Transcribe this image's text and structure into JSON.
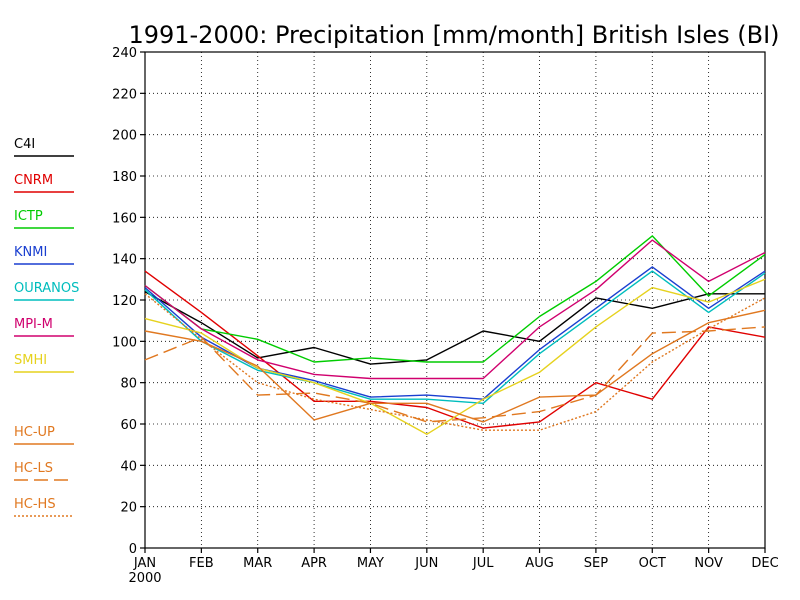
{
  "chart_data": {
    "type": "line",
    "title": "1991-2000: Precipitation [mm/month] British Isles (BI)",
    "categories": [
      "JAN",
      "FEB",
      "MAR",
      "APR",
      "MAY",
      "JUN",
      "JUL",
      "AUG",
      "SEP",
      "OCT",
      "NOV",
      "DEC"
    ],
    "x_sublabel": "2000",
    "ylim": [
      0,
      240
    ],
    "yticks": [
      0,
      20,
      40,
      60,
      80,
      100,
      120,
      140,
      160,
      180,
      200,
      220,
      240
    ],
    "grid": true,
    "legend_position": "left",
    "series": [
      {
        "name": "C4I",
        "color": "#000000",
        "dash": "solid",
        "values": [
          124,
          109,
          92,
          97,
          89,
          91,
          105,
          100,
          121,
          116,
          123,
          123
        ]
      },
      {
        "name": "CNRM",
        "color": "#e00000",
        "dash": "solid",
        "values": [
          134,
          114,
          93,
          71,
          71,
          68,
          58,
          61,
          80,
          72,
          107,
          102
        ]
      },
      {
        "name": "ICTP",
        "color": "#00cc00",
        "dash": "solid",
        "values": [
          127,
          106,
          101,
          90,
          92,
          90,
          90,
          112,
          129,
          151,
          122,
          142
        ]
      },
      {
        "name": "KNMI",
        "color": "#1a3fd0",
        "dash": "solid",
        "values": [
          126,
          102,
          87,
          81,
          73,
          74,
          72,
          96,
          116,
          136,
          116,
          134
        ]
      },
      {
        "name": "OURANOS",
        "color": "#00bdbd",
        "dash": "solid",
        "values": [
          125,
          100,
          86,
          80,
          72,
          72,
          70,
          94,
          114,
          134,
          114,
          133
        ]
      },
      {
        "name": "MPI-M",
        "color": "#d0006e",
        "dash": "solid",
        "values": [
          127,
          106,
          91,
          84,
          82,
          82,
          82,
          107,
          125,
          149,
          129,
          143
        ]
      },
      {
        "name": "SMHI",
        "color": "#e6d21e",
        "dash": "solid",
        "values": [
          111,
          104,
          87,
          80,
          70,
          55,
          72,
          85,
          107,
          126,
          119,
          130
        ]
      },
      {
        "name": "HC-UP",
        "color": "#e07820",
        "dash": "solid",
        "values": [
          105,
          100,
          88,
          62,
          70,
          70,
          61,
          73,
          74,
          94,
          109,
          115
        ]
      },
      {
        "name": "HC-LS",
        "color": "#e07820",
        "dash": "long",
        "values": [
          91,
          102,
          74,
          75,
          70,
          61,
          63,
          66,
          74,
          104,
          105,
          107
        ]
      },
      {
        "name": "HC-HS",
        "color": "#e07820",
        "dash": "dotted",
        "values": [
          123,
          101,
          80,
          72,
          67,
          62,
          57,
          57,
          66,
          90,
          106,
          121
        ]
      }
    ]
  },
  "legend": {
    "groups": [
      [
        "C4I",
        "CNRM",
        "ICTP",
        "KNMI",
        "OURANOS",
        "MPI-M",
        "SMHI"
      ],
      [
        "HC-UP",
        "HC-LS",
        "HC-HS"
      ]
    ]
  }
}
